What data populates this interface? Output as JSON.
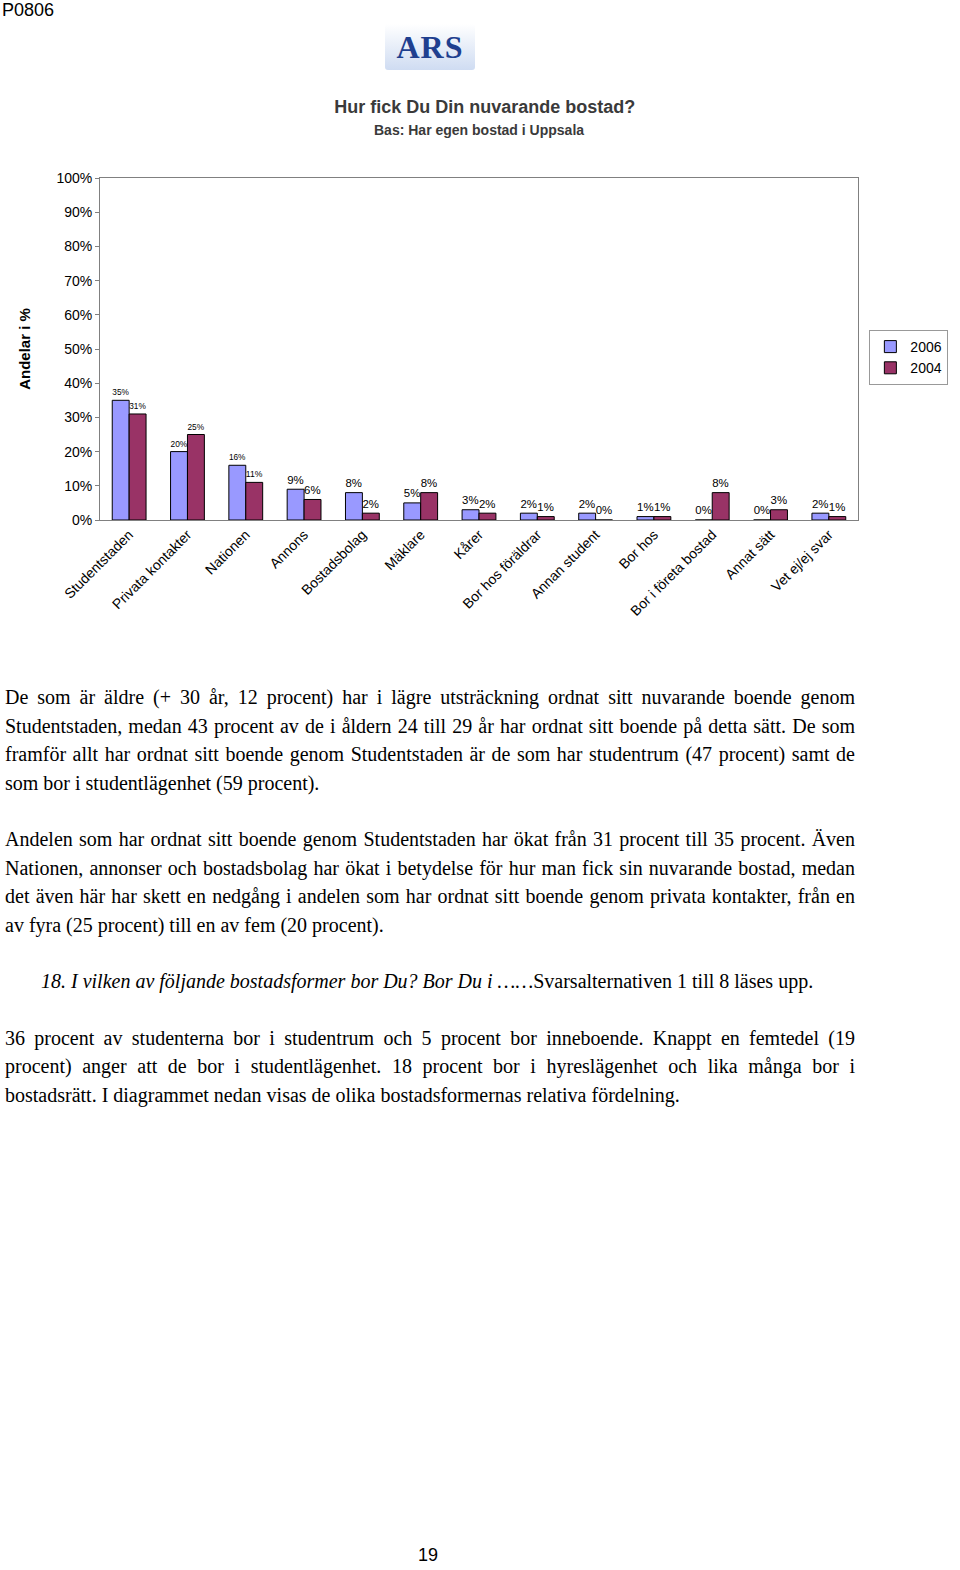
{
  "page": {
    "code": "P0806",
    "logo": "ARS",
    "paragraphs": [
      "De som är äldre (+ 30 år, 12 procent) har i lägre utsträckning ordnat sitt nuvarande boende genom Studentstaden, medan 43 procent av de i åldern 24 till 29 år har ordnat sitt boende på detta sätt. De som framför allt har ordnat sitt boende genom Studentstaden är de som har studentrum (47 procent) samt de som bor i studentlägenhet (59 procent).",
      "Andelen som har ordnat sitt boende genom Studentstaden har ökat från 31 procent till 35 procent. Även Nationen, annonser och bostadsbolag har ökat i betydelse för hur man fick sin nuvarande bostad, medan det även här har skett en nedgång i andelen som har ordnat sitt boende genom privata kontakter, från en av fyra (25 procent) till en av fem (20 procent)."
    ],
    "question": {
      "number": "18.",
      "text_italic": "I vilken av följande bostadsformer bor Du? Bor Du i ……",
      "text": "Svarsalternativen 1 till 8 läses upp."
    },
    "paragraphs_after": [
      "36 procent av studenterna bor i studentrum och 5 procent bor inneboende. Knappt en femtedel (19 procent) anger att de bor i studentlägenhet. 18 procent bor i hyreslägenhet och lika många bor i bostadsrätt. I diagrammet nedan visas de olika bostadsformernas relativa fördelning."
    ],
    "page_number": "19"
  },
  "chart_data": {
    "type": "bar",
    "title": "Hur fick Du Din nuvarande bostad?",
    "subtitle": "Bas: Har egen bostad i Uppsala",
    "y_label": "Andelar i %",
    "categories": [
      "Studentstaden",
      "Privata kontakter",
      "Nationen",
      "Annons",
      "Bostadsbolag",
      "Mäklare",
      "Kårer",
      "Bor hos föräldrar",
      "Annan student",
      "Bor hos",
      "Bor i företa bostad",
      "Annat sätt",
      "Vet ej/ej svar"
    ],
    "series": [
      {
        "name": "2006",
        "color": "#9999ff",
        "values": [
          35,
          20,
          16,
          9,
          8,
          5,
          3,
          2,
          2,
          1,
          0,
          0,
          2
        ],
        "value_labels": [
          "35%",
          "20%",
          "16%",
          "9%",
          "8%",
          "5%",
          "3%",
          "2%",
          "2%",
          "1%",
          "0%",
          "0%",
          "2%"
        ]
      },
      {
        "name": "2004",
        "color": "#993366",
        "values": [
          31,
          25,
          11,
          6,
          2,
          8,
          2,
          1,
          0,
          1,
          8,
          3,
          1
        ],
        "value_labels": [
          "31%",
          "25%",
          "11%",
          "6%",
          "2%",
          "8%",
          "2%",
          "1%",
          "0%",
          "1%",
          "8%",
          "3%",
          "1%"
        ]
      }
    ],
    "ylim": [
      0,
      100
    ],
    "yticks": [
      {
        "value": 0,
        "label": "0%"
      },
      {
        "value": 10,
        "label": "10%"
      },
      {
        "value": 20,
        "label": "20%"
      },
      {
        "value": 30,
        "label": "30%"
      },
      {
        "value": 40,
        "label": "40%"
      },
      {
        "value": 50,
        "label": "50%"
      },
      {
        "value": 60,
        "label": "60%"
      },
      {
        "value": 70,
        "label": "70%"
      },
      {
        "value": 80,
        "label": "80%"
      },
      {
        "value": 90,
        "label": "90%"
      },
      {
        "value": 100,
        "label": "100%"
      }
    ],
    "grid": false,
    "legend": "right",
    "data_labels": true
  }
}
